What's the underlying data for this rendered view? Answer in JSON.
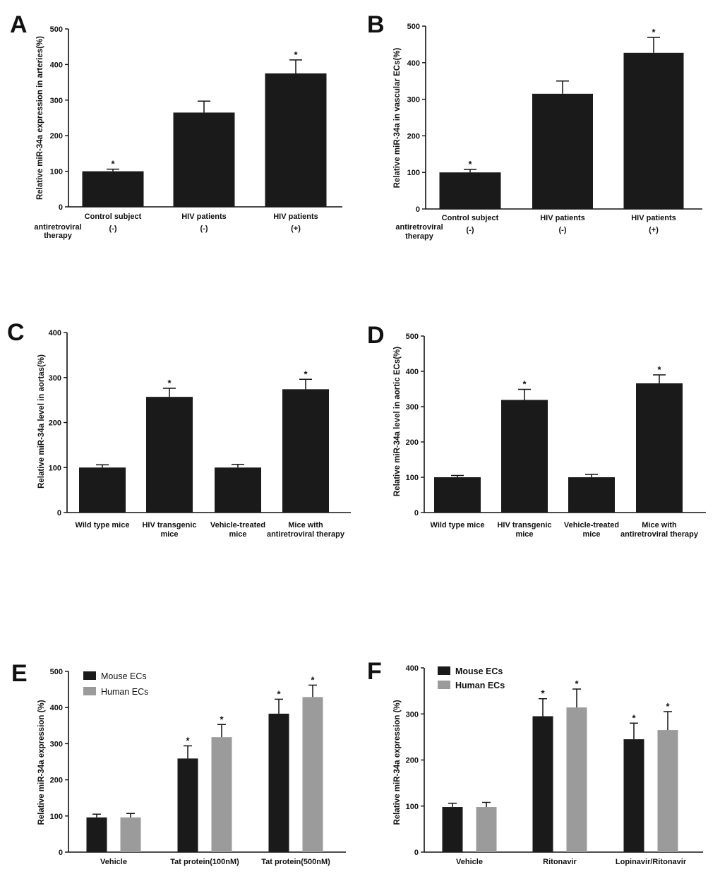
{
  "chart_data": [
    {
      "panel": "A",
      "type": "bar",
      "categories": [
        "Control subject",
        "HIV patients",
        "HIV patients"
      ],
      "values": [
        100,
        265,
        375
      ],
      "errors": [
        6,
        32,
        38
      ],
      "significance": [
        "*",
        "",
        "*"
      ],
      "ylabel": "Relative miR-34a expression in arteries(%)",
      "ylim": [
        0,
        500
      ],
      "yticks": [
        0,
        100,
        200,
        300,
        400,
        500
      ],
      "row_label": "antiretroviral therapy",
      "row_label_lines": [
        "antiretroviral",
        "therapy"
      ],
      "row_values": [
        "(-)",
        "(-)",
        "(+)"
      ]
    },
    {
      "panel": "B",
      "type": "bar",
      "categories": [
        "Control subject",
        "HIV patients",
        "HIV patients"
      ],
      "values": [
        100,
        315,
        427
      ],
      "errors": [
        8,
        35,
        42
      ],
      "significance": [
        "*",
        "",
        "*"
      ],
      "ylabel": "Relative miR-34a in vascular ECs(%)",
      "ylim": [
        0,
        500
      ],
      "yticks": [
        0,
        100,
        200,
        300,
        400,
        500
      ],
      "row_label": "antiretroviral therapy",
      "row_label_lines": [
        "antiretroviral",
        "therapy"
      ],
      "row_values": [
        "(-)",
        "(-)",
        "(+)"
      ]
    },
    {
      "panel": "C",
      "type": "bar",
      "categories": [
        "Wild type mice",
        "HIV transgenic mice",
        "Vehicle-treated mice",
        "Mice with antiretroviral therapy"
      ],
      "category_lines": [
        [
          "Wild type mice"
        ],
        [
          "HIV transgenic",
          "mice"
        ],
        [
          "Vehicle-treated",
          "mice"
        ],
        [
          "Mice with",
          "antiretroviral therapy"
        ]
      ],
      "values": [
        100,
        257,
        100,
        274
      ],
      "errors": [
        6,
        19,
        7,
        22
      ],
      "significance": [
        "",
        "*",
        "",
        "*"
      ],
      "ylabel": "Relative miR-34a level in aortas(%)",
      "ylim": [
        0,
        400
      ],
      "yticks": [
        0,
        100,
        200,
        300,
        400
      ]
    },
    {
      "panel": "D",
      "type": "bar",
      "categories": [
        "Wild type mice",
        "HIV transgenic mice",
        "Vehicle-treated mice",
        "Mice with antiretroviral therapy"
      ],
      "category_lines": [
        [
          "Wild type mice"
        ],
        [
          "HIV transgenic",
          "mice"
        ],
        [
          "Vehicle-treated",
          "mice"
        ],
        [
          "Mice with",
          "antiretroviral therapy"
        ]
      ],
      "values": [
        100,
        319,
        100,
        366
      ],
      "errors": [
        5,
        30,
        8,
        24
      ],
      "significance": [
        "",
        "*",
        "",
        "*"
      ],
      "ylabel": "Relative miR-34a level in aortic ECs(%)",
      "ylim": [
        0,
        500
      ],
      "yticks": [
        0,
        100,
        200,
        300,
        400,
        500
      ]
    },
    {
      "panel": "E",
      "type": "bar",
      "categories": [
        "Vehicle",
        "Tat protein(100nM)",
        "Tat protein(500nM)"
      ],
      "series": [
        {
          "name": "Mouse ECs",
          "color": "#1a1a1a",
          "values": [
            96,
            259,
            383
          ],
          "errors": [
            9,
            35,
            40
          ],
          "significance": [
            "",
            "*",
            "*"
          ]
        },
        {
          "name": "Human ECs",
          "color": "#9b9b9b",
          "values": [
            96,
            318,
            429
          ],
          "errors": [
            11,
            35,
            33
          ],
          "significance": [
            "",
            "*",
            "*"
          ]
        }
      ],
      "ylabel": "Relative miR-34a expression (%)",
      "ylim": [
        0,
        500
      ],
      "yticks": [
        0,
        100,
        200,
        300,
        400,
        500
      ],
      "legend_style": "normal"
    },
    {
      "panel": "F",
      "type": "bar",
      "categories": [
        "Vehicle",
        "Ritonavir",
        "Lopinavir/Ritonavir"
      ],
      "series": [
        {
          "name": "Mouse ECs",
          "color": "#1a1a1a",
          "values": [
            98,
            295,
            245
          ],
          "errors": [
            8,
            38,
            35
          ],
          "significance": [
            "",
            "*",
            "*"
          ]
        },
        {
          "name": "Human ECs",
          "color": "#9b9b9b",
          "values": [
            98,
            314,
            265
          ],
          "errors": [
            10,
            40,
            40
          ],
          "significance": [
            "",
            "*",
            "*"
          ]
        }
      ],
      "ylabel": "Relative miR-34a expression (%)",
      "ylim": [
        0,
        400
      ],
      "yticks": [
        0,
        100,
        200,
        300,
        400
      ],
      "legend_style": "bold"
    }
  ]
}
